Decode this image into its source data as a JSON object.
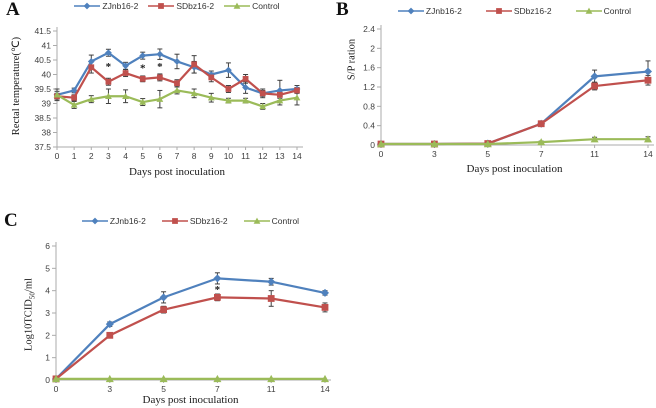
{
  "figure": {
    "background": "#ffffff",
    "colors": {
      "zjnb16_2": "#4F81BD",
      "sdbz16_2": "#C0504D",
      "control": "#9BBB59",
      "error_bar": "#404040",
      "axis_line": "#ABABAB",
      "tick_text": "#404040",
      "annotation": "#1a1a1a"
    }
  },
  "chart_data": [
    {
      "panel": "A",
      "type": "line",
      "xlabel": "Days post inoculation",
      "ylabel": "Rectal temperature(℃)",
      "ylabel_parts": [
        {
          "t": "Rectal temperature(℃)"
        }
      ],
      "ylim": [
        37.5,
        41.5
      ],
      "yticks": [
        37.5,
        38,
        38.5,
        39,
        39.5,
        40,
        40.5,
        41,
        41.5
      ],
      "categories": [
        0,
        1,
        2,
        3,
        4,
        5,
        6,
        7,
        8,
        9,
        10,
        11,
        12,
        13,
        14
      ],
      "grid": false,
      "legend_position": "top",
      "series": [
        {
          "name": "ZJnb16-2",
          "color": "#4F81BD",
          "marker": "diamond",
          "values": [
            39.3,
            39.45,
            40.45,
            40.75,
            40.3,
            40.65,
            40.7,
            40.45,
            40.25,
            40.0,
            40.15,
            39.55,
            39.35,
            39.45,
            39.5
          ],
          "errors": [
            0.12,
            0.08,
            0.22,
            0.12,
            0.12,
            0.12,
            0.18,
            0.25,
            0.2,
            0.12,
            0.25,
            0.2,
            0.15,
            0.35,
            0.12
          ]
        },
        {
          "name": "SDbz16-2",
          "color": "#C0504D",
          "marker": "square",
          "values": [
            39.25,
            39.2,
            40.25,
            39.75,
            40.05,
            39.85,
            39.9,
            39.7,
            40.35,
            39.9,
            39.5,
            39.85,
            39.35,
            39.3,
            39.45
          ],
          "errors": [
            0.1,
            0.1,
            0.2,
            0.12,
            0.12,
            0.1,
            0.12,
            0.12,
            0.3,
            0.15,
            0.12,
            0.15,
            0.1,
            0.12,
            0.1
          ]
        },
        {
          "name": "Control",
          "color": "#9BBB59",
          "marker": "triangle",
          "values": [
            39.3,
            38.95,
            39.15,
            39.25,
            39.25,
            39.05,
            39.15,
            39.45,
            39.35,
            39.2,
            39.1,
            39.1,
            38.9,
            39.1,
            39.2
          ],
          "errors": [
            0.2,
            0.12,
            0.12,
            0.25,
            0.22,
            0.12,
            0.3,
            0.12,
            0.15,
            0.15,
            0.08,
            0.08,
            0.1,
            0.15,
            0.25
          ]
        }
      ],
      "annotations": [
        {
          "x": 3,
          "y": 40.3,
          "text": "*"
        },
        {
          "x": 5,
          "y": 40.25,
          "text": "*"
        },
        {
          "x": 6,
          "y": 40.3,
          "text": "*"
        }
      ]
    },
    {
      "panel": "B",
      "type": "line",
      "xlabel": "Days post inoculation",
      "ylabel": "S/P ration",
      "ylabel_parts": [
        {
          "t": "S/P ration"
        }
      ],
      "ylim": [
        0,
        2.4
      ],
      "yticks": [
        0,
        0.4,
        0.8,
        1.2,
        1.6,
        2,
        2.4
      ],
      "categories": [
        0,
        3,
        5,
        7,
        11,
        14
      ],
      "grid": false,
      "legend_position": "top",
      "series": [
        {
          "name": "ZJnb16-2",
          "color": "#4F81BD",
          "marker": "diamond",
          "values": [
            0.02,
            0.02,
            0.03,
            0.44,
            1.42,
            1.52
          ],
          "errors": [
            0.02,
            0.02,
            0.02,
            0.03,
            0.13,
            0.22
          ]
        },
        {
          "name": "SDbz16-2",
          "color": "#C0504D",
          "marker": "square",
          "values": [
            0.02,
            0.02,
            0.03,
            0.44,
            1.22,
            1.34
          ],
          "errors": [
            0.02,
            0.02,
            0.02,
            0.03,
            0.08,
            0.1
          ]
        },
        {
          "name": "Control",
          "color": "#9BBB59",
          "marker": "triangle",
          "values": [
            0.02,
            0.02,
            0.02,
            0.06,
            0.12,
            0.12
          ],
          "errors": [
            0.01,
            0.01,
            0.01,
            0.02,
            0.04,
            0.05
          ]
        }
      ],
      "annotations": []
    },
    {
      "panel": "C",
      "type": "line",
      "xlabel": "Days post inoculation",
      "ylabel": "Log10TCID50/ml",
      "ylabel_parts": [
        {
          "t": "Log10TCID"
        },
        {
          "t": "50",
          "sub": true
        },
        {
          "t": "/ml"
        }
      ],
      "ylim": [
        0,
        6
      ],
      "yticks": [
        0,
        1,
        2,
        3,
        4,
        5,
        6
      ],
      "categories": [
        0,
        3,
        5,
        7,
        11,
        14
      ],
      "grid": false,
      "legend_position": "top",
      "series": [
        {
          "name": "ZJnb16-2",
          "color": "#4F81BD",
          "marker": "diamond",
          "values": [
            0.05,
            2.5,
            3.7,
            4.55,
            4.4,
            3.9
          ],
          "errors": [
            0,
            0.1,
            0.25,
            0.25,
            0.15,
            0.1
          ]
        },
        {
          "name": "SDbz16-2",
          "color": "#C0504D",
          "marker": "square",
          "values": [
            0.05,
            2.0,
            3.15,
            3.7,
            3.65,
            3.25
          ],
          "errors": [
            0,
            0.12,
            0.15,
            0.15,
            0.35,
            0.2
          ]
        },
        {
          "name": "Control",
          "color": "#9BBB59",
          "marker": "triangle",
          "values": [
            0.05,
            0.05,
            0.05,
            0.05,
            0.05,
            0.05
          ],
          "errors": [
            0,
            0,
            0,
            0,
            0,
            0
          ]
        }
      ],
      "annotations": [
        {
          "x": 7,
          "y": 4.08,
          "text": "*"
        }
      ]
    }
  ]
}
